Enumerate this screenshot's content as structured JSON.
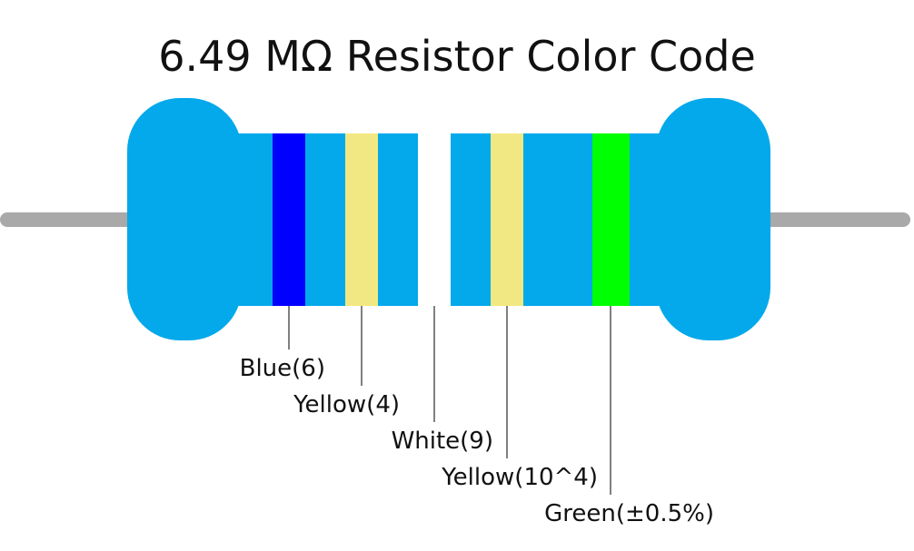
{
  "title": "6.49 MΩ Resistor Color Code",
  "bands": [
    {
      "label": "Blue(6)"
    },
    {
      "label": "Yellow(4)"
    },
    {
      "label": "White(9)"
    },
    {
      "label": "Yellow(10^4)"
    },
    {
      "label": "Green(±0.5%)"
    }
  ]
}
